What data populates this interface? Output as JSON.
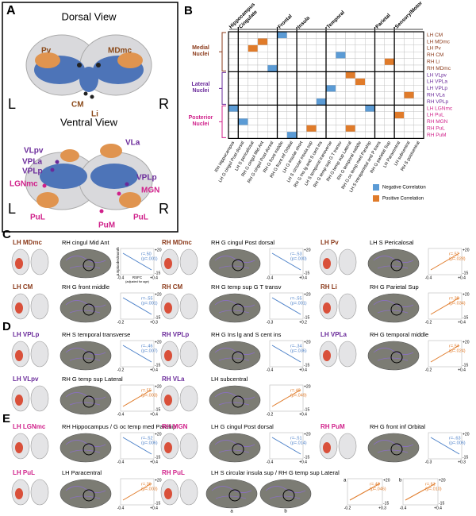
{
  "panel_a": {
    "letter": "A",
    "dorsal": {
      "title": "Dorsal View",
      "left": "L",
      "right": "R",
      "labels": [
        {
          "text": "Pv",
          "color": "#8b4a1a"
        },
        {
          "text": "MDmc",
          "color": "#8b4a1a"
        },
        {
          "text": "CM",
          "color": "#8b4a1a"
        },
        {
          "text": "Li",
          "color": "#8b4a1a"
        }
      ]
    },
    "ventral": {
      "title": "Ventral View",
      "left": "L",
      "right": "R",
      "labels": [
        {
          "text": "VLpv",
          "color": "#6a2a9a"
        },
        {
          "text": "VLa",
          "color": "#6a2a9a"
        },
        {
          "text": "VPLa",
          "color": "#6a2a9a"
        },
        {
          "text": "VPLp",
          "color": "#6a2a9a"
        },
        {
          "text": "LGNmc",
          "color": "#d0208a"
        },
        {
          "text": "VPLp",
          "color": "#6a2a9a"
        },
        {
          "text": "MGN",
          "color": "#d0208a"
        },
        {
          "text": "PuL",
          "color": "#d0208a"
        },
        {
          "text": "PuL",
          "color": "#d0208a"
        },
        {
          "text": "PuM",
          "color": "#d0208a"
        }
      ]
    }
  },
  "panel_b": {
    "letter": "B",
    "column_groups": [
      {
        "name": "Hippocampus",
        "columns": [
          "RH Hippocampus"
        ]
      },
      {
        "name": "Cingulate",
        "columns": [
          "LH G cingul Post dorsal",
          "LH S pericallosal",
          "RH G cingul Mid Ant",
          "RH G cingul Post dorsal"
        ]
      },
      {
        "name": "Frontal",
        "columns": [
          "RH G front middle",
          "RH G front inf Orbital"
        ]
      },
      {
        "name": "Insula",
        "columns": [
          "LH G insular short",
          "LH S circular insula sup",
          "RH G Ins lg and S cent ins"
        ]
      },
      {
        "name": "Temporal",
        "columns": [
          "LH S temporal transverse",
          "RH G temp sup G T transv",
          "RH G temp sup Lateral",
          "RH G temporal middle",
          "RH G oc temp med Parahip"
        ]
      },
      {
        "name": "Parietal",
        "columns": [
          "LH S intraparietal and P trans",
          "RH G parietal Sup"
        ]
      },
      {
        "name": "Sensory/Motor",
        "columns": [
          "LH Paracentral",
          "LH subcentral",
          "RH S postcentral"
        ]
      }
    ],
    "row_groups": [
      {
        "name": "Medial Nuclei",
        "color": "#8b3a1a",
        "rows": [
          {
            "label": "LH CM",
            "cells": [
              0,
              0,
              0,
              0,
              0,
              -1,
              0,
              0,
              0,
              0,
              0,
              0,
              0,
              0,
              0,
              0,
              0,
              0,
              0,
              0
            ]
          },
          {
            "label": "LH MDmc",
            "cells": [
              0,
              0,
              0,
              1,
              0,
              0,
              0,
              0,
              0,
              0,
              0,
              0,
              0,
              0,
              0,
              0,
              0,
              0,
              0,
              0
            ]
          },
          {
            "label": "LH Pv",
            "cells": [
              0,
              0,
              1,
              0,
              0,
              0,
              0,
              0,
              0,
              0,
              0,
              0,
              0,
              0,
              0,
              0,
              0,
              0,
              0,
              0
            ]
          },
          {
            "label": "RH CM",
            "cells": [
              0,
              0,
              0,
              0,
              0,
              0,
              0,
              0,
              0,
              0,
              0,
              -1,
              0,
              0,
              0,
              0,
              0,
              0,
              0,
              0
            ]
          },
          {
            "label": "RH Li",
            "cells": [
              0,
              0,
              0,
              0,
              0,
              0,
              0,
              0,
              0,
              0,
              0,
              0,
              0,
              0,
              0,
              0,
              1,
              0,
              0,
              0
            ]
          },
          {
            "label": "RH MDmc",
            "cells": [
              0,
              0,
              0,
              0,
              -1,
              0,
              0,
              0,
              0,
              0,
              0,
              0,
              0,
              0,
              0,
              0,
              0,
              0,
              0,
              0
            ]
          }
        ]
      },
      {
        "name": "Lateral Nuclei",
        "color": "#6a2a9a",
        "rows": [
          {
            "label": "LH VLpv",
            "cells": [
              0,
              0,
              0,
              0,
              0,
              0,
              0,
              0,
              0,
              0,
              0,
              0,
              1,
              0,
              0,
              0,
              0,
              0,
              0,
              0
            ]
          },
          {
            "label": "LH VPLa",
            "cells": [
              0,
              0,
              0,
              0,
              0,
              0,
              0,
              0,
              0,
              0,
              0,
              0,
              0,
              1,
              0,
              0,
              0,
              0,
              0,
              0
            ]
          },
          {
            "label": "LH VPLp",
            "cells": [
              0,
              0,
              0,
              0,
              0,
              0,
              0,
              0,
              0,
              0,
              -1,
              0,
              0,
              0,
              0,
              0,
              0,
              0,
              0,
              0
            ]
          },
          {
            "label": "RH VLa",
            "cells": [
              0,
              0,
              0,
              0,
              0,
              0,
              0,
              0,
              0,
              0,
              0,
              0,
              0,
              0,
              0,
              0,
              0,
              0,
              1,
              0
            ]
          },
          {
            "label": "RH VPLp",
            "cells": [
              0,
              0,
              0,
              0,
              0,
              0,
              0,
              0,
              0,
              -1,
              0,
              0,
              0,
              0,
              0,
              0,
              0,
              0,
              0,
              0
            ]
          }
        ]
      },
      {
        "name": "Posterior Nuclei",
        "color": "#d0208a",
        "rows": [
          {
            "label": "LH LGNmc",
            "cells": [
              -1,
              0,
              0,
              0,
              0,
              0,
              0,
              0,
              0,
              0,
              0,
              0,
              0,
              0,
              -1,
              0,
              0,
              0,
              0,
              0
            ]
          },
          {
            "label": "LH PuL",
            "cells": [
              0,
              0,
              0,
              0,
              0,
              0,
              0,
              0,
              0,
              0,
              0,
              0,
              0,
              0,
              0,
              0,
              0,
              1,
              0,
              0
            ]
          },
          {
            "label": "RH MGN",
            "cells": [
              0,
              -1,
              0,
              0,
              0,
              0,
              0,
              0,
              0,
              0,
              0,
              0,
              0,
              0,
              0,
              0,
              0,
              0,
              0,
              0
            ]
          },
          {
            "label": "RH PuL",
            "cells": [
              0,
              0,
              0,
              0,
              0,
              0,
              0,
              0,
              1,
              0,
              0,
              0,
              1,
              0,
              0,
              0,
              0,
              0,
              0,
              0
            ]
          },
          {
            "label": "RH PuM",
            "cells": [
              0,
              0,
              0,
              0,
              0,
              0,
              -1,
              0,
              0,
              0,
              0,
              0,
              0,
              0,
              0,
              0,
              0,
              0,
              0,
              0
            ]
          }
        ]
      }
    ],
    "legend": [
      {
        "label": "Negative Correlation",
        "color": "#5b9bd5"
      },
      {
        "label": "Positive Correlation",
        "color": "#e07b2a"
      }
    ]
  },
  "panels": [
    {
      "letter": "C",
      "color": "#8b3a1a",
      "items": [
        {
          "nucleus": "LH MDmc",
          "region": "RH cingul Mid Ant",
          "plots": [
            {
              "r": "r=.50",
              "p": "(p=.001)",
              "color": "#4a7fc8",
              "xticks": [
                "-0.4",
                "+0.4"
              ],
              "yticks": [
                "+20",
                "-15"
              ],
              "ylabel": "Δ Episodes/month",
              "xlabel": "RSFC",
              "xnote": "(adjusted for age)"
            }
          ]
        },
        {
          "nucleus": "RH MDmc",
          "region": "RH G cingul Post dorsal",
          "plots": [
            {
              "r": "r=-.53",
              "p": "(p=.000)",
              "color": "#4a7fc8",
              "xticks": [
                "-0.4",
                "+0.4"
              ],
              "yticks": [
                "+20",
                "-15"
              ]
            }
          ]
        },
        {
          "nucleus": "LH Pv",
          "region": "LH S Pericalosal",
          "plots": [
            {
              "r": "r=.52",
              "p": "(p=.028)",
              "color": "#e07b2a",
              "xticks": [
                "-0.4",
                "+0.4"
              ],
              "yticks": [
                "+20",
                "-15"
              ]
            }
          ]
        },
        {
          "nucleus": "LH CM",
          "region": "RH G front middle",
          "plots": [
            {
              "r": "r=-.55",
              "p": "(p=.001)",
              "color": "#4a7fc8",
              "xticks": [
                "-0.2",
                "+0.3"
              ],
              "yticks": [
                "+20",
                "-15"
              ]
            }
          ]
        },
        {
          "nucleus": "RH CM",
          "region": "RH G temp sup G T transv",
          "plots": [
            {
              "r": "r=-.55",
              "p": "(p=.001)",
              "color": "#4a7fc8",
              "xticks": [
                "-0.3",
                "+0.2"
              ],
              "yticks": [
                "+20",
                "-15"
              ]
            }
          ]
        },
        {
          "nucleus": "RH Li",
          "region": "RH G Parietal Sup",
          "plots": [
            {
              "r": "r=.38",
              "p": "(p=.034)",
              "color": "#e07b2a",
              "xticks": [
                "-0.2",
                "+0.4"
              ],
              "yticks": [
                "+20",
                "-15"
              ]
            }
          ]
        }
      ]
    },
    {
      "letter": "D",
      "color": "#6a2a9a",
      "items": [
        {
          "nucleus": "LH VPLp",
          "region": "RH S temporal transverse",
          "plots": [
            {
              "r": "r=-.46",
              "p": "(p=.007)",
              "color": "#4a7fc8",
              "xticks": [
                "-0.2",
                "+0.4"
              ],
              "yticks": [
                "+20",
                "-15"
              ]
            }
          ]
        },
        {
          "nucleus": "RH VPLp",
          "region": "RH G Ins lg and S cent ins",
          "plots": [
            {
              "r": "r=-.34",
              "p": "(p=.036)",
              "color": "#4a7fc8",
              "xticks": [
                "-0.4",
                "+0.4"
              ],
              "yticks": [
                "+20",
                "-15"
              ]
            }
          ]
        },
        {
          "nucleus": "LH VPLa",
          "region": "RH G temporal middle",
          "plots": [
            {
              "r": "r=.54",
              "p": "(p=.024)",
              "color": "#e07b2a",
              "xticks": [
                "-0.2",
                "+0.4"
              ],
              "yticks": [
                "+20",
                "-15"
              ]
            }
          ]
        },
        {
          "nucleus": "LH VLpv",
          "region": "RH G temp sup Lateral",
          "plots": [
            {
              "r": "r=.55",
              "p": "(p=.003)",
              "color": "#e07b2a",
              "xticks": [
                "-0.4",
                "+0.4"
              ],
              "yticks": [
                "+20",
                "-15"
              ]
            }
          ]
        },
        {
          "nucleus": "RH VLa",
          "region": "LH subcentral",
          "plots": [
            {
              "r": "r=.48",
              "p": "(p=.049)",
              "color": "#e07b2a",
              "xticks": [
                "-0.2",
                "+0.4"
              ],
              "yticks": [
                "+20",
                "-15"
              ]
            }
          ]
        }
      ]
    },
    {
      "letter": "E",
      "color": "#d0208a",
      "items": [
        {
          "nucleus": "LH LGNmc",
          "region": "RH Hippocampus / G oc temp med Parahip",
          "plots": [
            {
              "r": "r=-.52",
              "p": "(p=.006)",
              "color": "#4a7fc8",
              "xticks": [
                "-0.4",
                "+0.4"
              ],
              "yticks": [
                "+20",
                "-15"
              ]
            }
          ]
        },
        {
          "nucleus": "RH MGN",
          "region": "LH G cingul Post dorsal",
          "plots": [
            {
              "r": "r=-.51",
              "p": "(p=.014)",
              "color": "#4a7fc8",
              "xticks": [
                "-0.4",
                "+0.4"
              ],
              "yticks": [
                "+20",
                "-15"
              ]
            }
          ]
        },
        {
          "nucleus": "RH PuM",
          "region": "RH G front inf Orbital",
          "plots": [
            {
              "r": "r=-.63",
              "p": "(p=.006)",
              "color": "#4a7fc8",
              "xticks": [
                "-0.3",
                "+0.3"
              ],
              "yticks": [
                "+20",
                "-15"
              ]
            }
          ]
        },
        {
          "nucleus": "LH PuL",
          "region": "LH Paracentral",
          "plots": [
            {
              "r": "r=.36",
              "p": "(p=.003)",
              "color": "#e07b2a",
              "xticks": [
                "-0.4",
                "+0.4"
              ],
              "yticks": [
                "+20",
                "-15"
              ]
            }
          ]
        },
        {
          "nucleus": "RH PuL",
          "region": "LH S circular insula sup / RH G temp sup Lateral",
          "plots": [
            {
              "tag": "a",
              "r": "r=.48",
              "p": "(p=.046)",
              "color": "#e07b2a",
              "xticks": [
                "-0.2",
                "+0.3"
              ],
              "yticks": [
                "+20",
                "-15"
              ]
            },
            {
              "tag": "b",
              "r": "r=.61",
              "p": "(p=.010)",
              "color": "#e07b2a",
              "xticks": [
                "-0.4",
                "+0.4"
              ],
              "yticks": [
                "+20",
                "-15"
              ]
            }
          ]
        }
      ]
    }
  ]
}
